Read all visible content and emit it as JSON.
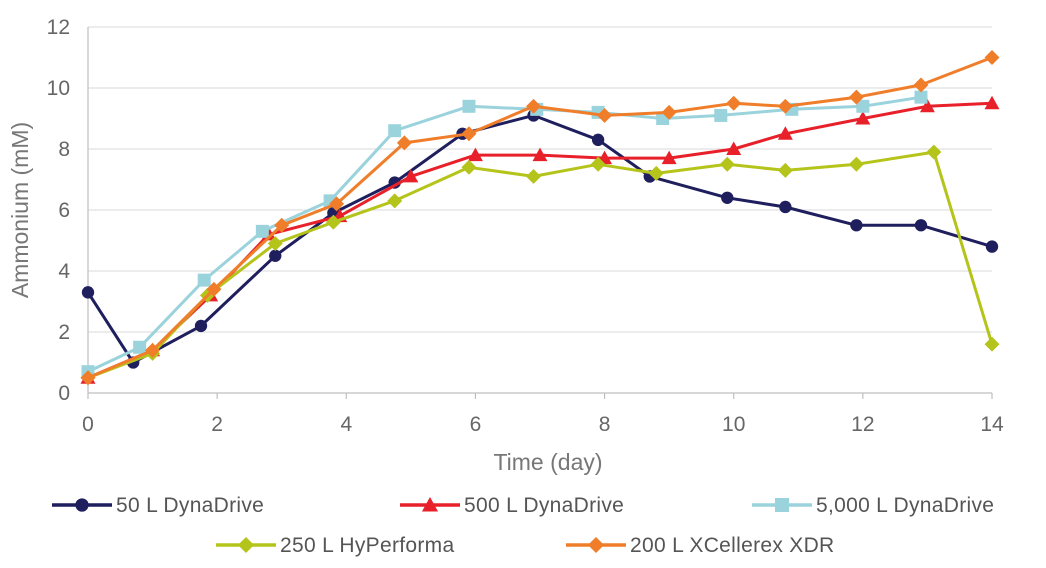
{
  "chart_data": {
    "type": "line",
    "xlabel": "Time (day)",
    "ylabel": "Ammonium (mM)",
    "xlim": [
      0,
      14
    ],
    "ylim": [
      0,
      12
    ],
    "xticks": [
      "0",
      "2",
      "4",
      "6",
      "8",
      "10",
      "12",
      "14"
    ],
    "yticks": [
      "0",
      "2",
      "4",
      "6",
      "8",
      "10",
      "12"
    ],
    "grid": "horizontal",
    "legend_position": "bottom",
    "series": [
      {
        "name": "50 L DynaDrive",
        "color": "#1f1f5e",
        "marker": "circle",
        "points": [
          [
            0,
            3.3
          ],
          [
            0.7,
            1.0
          ],
          [
            1.75,
            2.2
          ],
          [
            2.9,
            4.5
          ],
          [
            3.8,
            5.9
          ],
          [
            4.75,
            6.9
          ],
          [
            5.8,
            8.5
          ],
          [
            6.9,
            9.1
          ],
          [
            7.9,
            8.3
          ],
          [
            8.7,
            7.1
          ],
          [
            9.9,
            6.4
          ],
          [
            10.8,
            6.1
          ],
          [
            11.9,
            5.5
          ],
          [
            12.9,
            5.5
          ],
          [
            14.0,
            4.8
          ]
        ]
      },
      {
        "name": "500 L DynaDrive",
        "color": "#e8202a",
        "marker": "triangle",
        "points": [
          [
            0,
            0.5
          ],
          [
            1.0,
            1.4
          ],
          [
            1.9,
            3.2
          ],
          [
            2.8,
            5.2
          ],
          [
            3.9,
            5.8
          ],
          [
            5.0,
            7.1
          ],
          [
            6.0,
            7.8
          ],
          [
            7.0,
            7.8
          ],
          [
            8.0,
            7.7
          ],
          [
            9.0,
            7.7
          ],
          [
            10.0,
            8.0
          ],
          [
            10.8,
            8.5
          ],
          [
            12.0,
            9.0
          ],
          [
            13.0,
            9.4
          ],
          [
            14.0,
            9.5
          ]
        ]
      },
      {
        "name": "5,000 L DynaDrive",
        "color": "#9bd3dd",
        "marker": "square",
        "points": [
          [
            0,
            0.7
          ],
          [
            0.8,
            1.5
          ],
          [
            1.8,
            3.7
          ],
          [
            2.7,
            5.3
          ],
          [
            3.75,
            6.3
          ],
          [
            4.75,
            8.6
          ],
          [
            5.9,
            9.4
          ],
          [
            6.95,
            9.3
          ],
          [
            7.9,
            9.2
          ],
          [
            8.9,
            9.0
          ],
          [
            9.8,
            9.1
          ],
          [
            10.9,
            9.3
          ],
          [
            12.0,
            9.4
          ],
          [
            12.9,
            9.7
          ]
        ]
      },
      {
        "name": "250 L HyPerforma",
        "color": "#b5c41b",
        "marker": "diamond",
        "points": [
          [
            0,
            0.5
          ],
          [
            1.0,
            1.3
          ],
          [
            1.85,
            3.2
          ],
          [
            2.9,
            4.9
          ],
          [
            3.8,
            5.6
          ],
          [
            4.75,
            6.3
          ],
          [
            5.9,
            7.4
          ],
          [
            6.9,
            7.1
          ],
          [
            7.9,
            7.5
          ],
          [
            8.8,
            7.2
          ],
          [
            9.9,
            7.5
          ],
          [
            10.8,
            7.3
          ],
          [
            11.9,
            7.5
          ],
          [
            13.1,
            7.9
          ],
          [
            14.0,
            1.6
          ]
        ]
      },
      {
        "name": "200 L XCellerex XDR",
        "color": "#ef7d2a",
        "marker": "diamond",
        "points": [
          [
            0,
            0.5
          ],
          [
            1.0,
            1.4
          ],
          [
            1.95,
            3.4
          ],
          [
            3.0,
            5.5
          ],
          [
            3.85,
            6.2
          ],
          [
            4.9,
            8.2
          ],
          [
            5.9,
            8.5
          ],
          [
            6.9,
            9.4
          ],
          [
            8.0,
            9.1
          ],
          [
            9.0,
            9.2
          ],
          [
            10.0,
            9.5
          ],
          [
            10.8,
            9.4
          ],
          [
            11.9,
            9.7
          ],
          [
            12.9,
            10.1
          ],
          [
            14.0,
            11.0
          ]
        ]
      }
    ]
  }
}
